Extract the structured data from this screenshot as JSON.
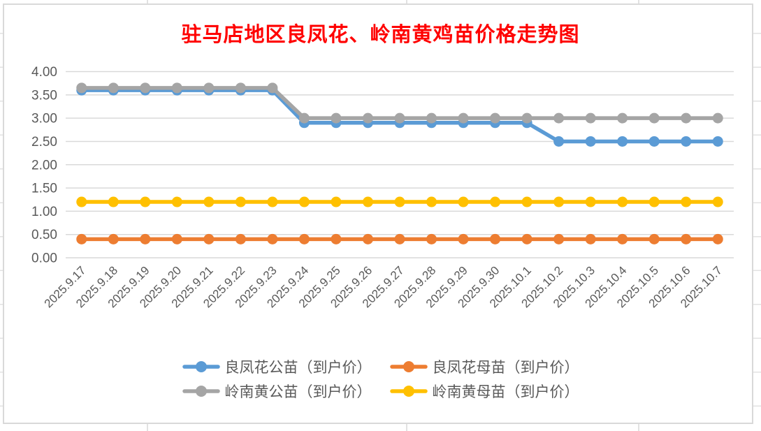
{
  "chart_data": {
    "type": "line",
    "title": "驻马店地区良凤花、岭南黄鸡苗价格走势图",
    "title_color": "#FF0000",
    "categories": [
      "2025.9.17",
      "2025.9.18",
      "2025.9.19",
      "2025.9.20",
      "2025.9.21",
      "2025.9.22",
      "2025.9.23",
      "2025.9.24",
      "2025.9.25",
      "2025.9.26",
      "2025.9.27",
      "2025.9.28",
      "2025.9.29",
      "2025.9.30",
      "2025.10.1",
      "2025.10.2",
      "2025.10.3",
      "2025.10.4",
      "2025.10.5",
      "2025.10.6",
      "2025.10.7"
    ],
    "series": [
      {
        "name": "良凤花公苗（到户价）",
        "color": "#5B9BD5",
        "values": [
          3.6,
          3.6,
          3.6,
          3.6,
          3.6,
          3.6,
          3.6,
          2.9,
          2.9,
          2.9,
          2.9,
          2.9,
          2.9,
          2.9,
          2.9,
          2.5,
          2.5,
          2.5,
          2.5,
          2.5,
          2.5
        ]
      },
      {
        "name": "良凤花母苗（到户价）",
        "color": "#ED7D31",
        "values": [
          0.4,
          0.4,
          0.4,
          0.4,
          0.4,
          0.4,
          0.4,
          0.4,
          0.4,
          0.4,
          0.4,
          0.4,
          0.4,
          0.4,
          0.4,
          0.4,
          0.4,
          0.4,
          0.4,
          0.4,
          0.4
        ]
      },
      {
        "name": "岭南黄公苗（到户价）",
        "color": "#A5A5A5",
        "values": [
          3.65,
          3.65,
          3.65,
          3.65,
          3.65,
          3.65,
          3.65,
          3.0,
          3.0,
          3.0,
          3.0,
          3.0,
          3.0,
          3.0,
          3.0,
          3.0,
          3.0,
          3.0,
          3.0,
          3.0,
          3.0
        ]
      },
      {
        "name": "岭南黄母苗（到户价）",
        "color": "#FFC000",
        "values": [
          1.2,
          1.2,
          1.2,
          1.2,
          1.2,
          1.2,
          1.2,
          1.2,
          1.2,
          1.2,
          1.2,
          1.2,
          1.2,
          1.2,
          1.2,
          1.2,
          1.2,
          1.2,
          1.2,
          1.2,
          1.2
        ]
      }
    ],
    "ylim": [
      0,
      4
    ],
    "ytick_step": 0.5,
    "yticks": [
      "0.00",
      "0.50",
      "1.00",
      "1.50",
      "2.00",
      "2.50",
      "3.00",
      "3.50",
      "4.00"
    ],
    "grid": true,
    "legend_position": "bottom",
    "legend_rows": [
      [
        0,
        1
      ],
      [
        2,
        3
      ]
    ],
    "axis_text_color": "#595959",
    "gridline_color": "#D9D9D9",
    "x_label_rotation_deg": -45
  }
}
